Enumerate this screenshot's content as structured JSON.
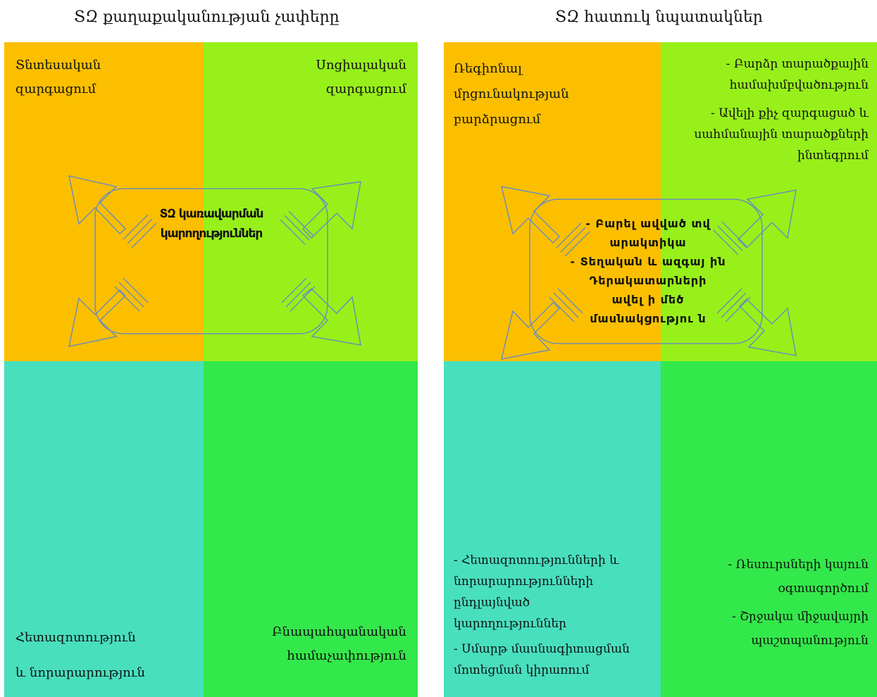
{
  "colors": {
    "orange": "#fbbf00",
    "lime": "#97f01a",
    "teal": "#48dfbd",
    "green": "#33e84a",
    "arrow_stroke": "#6f8fb3"
  },
  "left": {
    "title": "ՏԶ քաղաքականության չափերը",
    "top_left": [
      "Տնտեսական",
      "զարգացում"
    ],
    "top_right": [
      "Սոցիալական",
      "զարգացում"
    ],
    "bottom_left": [
      "Հետազոտություն",
      "և նորարարություն"
    ],
    "bottom_right": [
      "Բնապահպանական",
      "համաչափություն"
    ],
    "center": [
      "ՏԶ կառավարման",
      "կարողություններ"
    ]
  },
  "right": {
    "title": "ՏԶ հատուկ նպատակներ",
    "top_left": [
      "Ռեգիոնալ",
      "մրցունակության",
      "բարձրացում"
    ],
    "top_right": [
      [
        "- Բարձր տարածքային",
        "համախմբվածություն"
      ],
      [
        "- Ավելի քիչ զարգացած և",
        "սահմանային տարածքների",
        "ինտեգրում"
      ]
    ],
    "bottom_left": [
      [
        "- Հետազոտությունների և",
        "նորարարությունների",
        "ընդլայնված",
        "կարողություններ"
      ],
      [
        "- Սմարթ մասնագիտացման",
        "մոտեցման կիրառում"
      ]
    ],
    "bottom_right": [
      [
        "- Ռեսուրսների կայուն",
        "օգտագործում"
      ],
      [
        "- Շրջակա  միջավայրի",
        "պաշտպանություն"
      ]
    ],
    "center": [
      "- Բարել ավված տվ",
      "արակտիկա",
      "- Տեղական և ազգայ ին",
      "Դերակատարների",
      "ավել ի մեծ",
      "մասնակցությու ն"
    ]
  }
}
